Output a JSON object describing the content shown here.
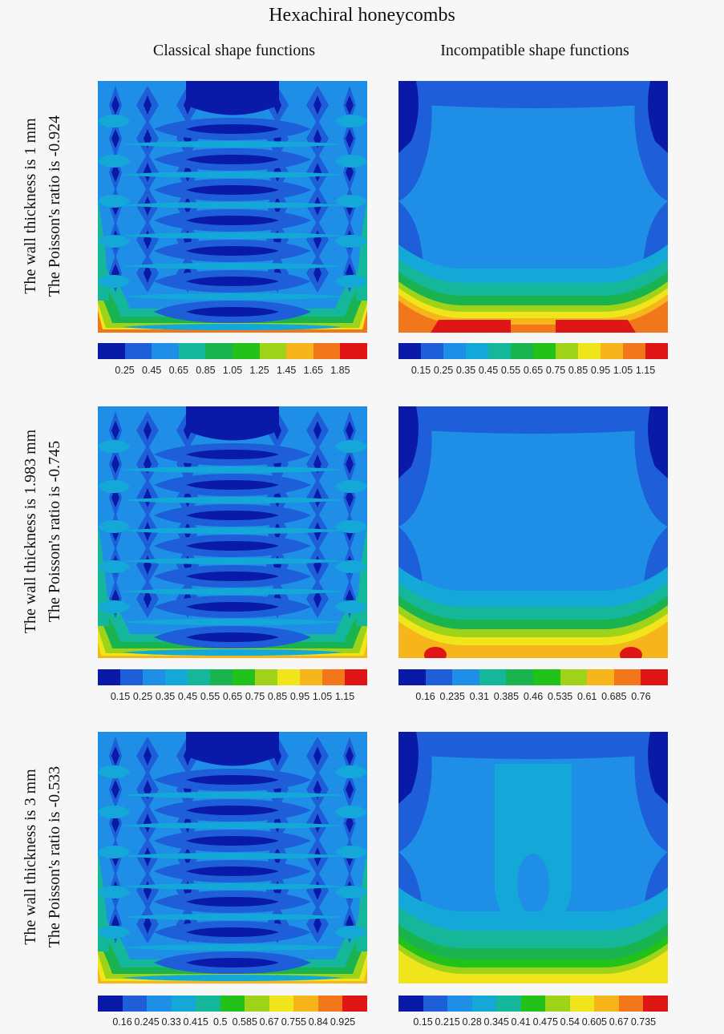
{
  "title": "Hexachiral honeycombs",
  "columns": [
    "Classical shape functions",
    "Incompatible shape functions"
  ],
  "rows": [
    {
      "line1": "The wall thickness is 1 mm",
      "line2": "The Poisson's ratio is -0.924"
    },
    {
      "line1": "The wall thickness is 1.983 mm",
      "line2": "The Poisson's ratio is -0.745"
    },
    {
      "line1": "The wall thickness is 3 mm",
      "line2": "The Poisson's ratio is -0.533"
    }
  ],
  "colors": [
    "#0a1aa8",
    "#1e5fd9",
    "#1e8ee6",
    "#14a8d8",
    "#15b79a",
    "#19b350",
    "#23c21a",
    "#9fd31a",
    "#f0e41a",
    "#f6b51a",
    "#f2771a",
    "#e01616"
  ],
  "chart_data": [
    {
      "type": "heatmap",
      "row": 0,
      "column": 0,
      "panel": "classical",
      "colorbar_ticks": [
        "0.25",
        "0.45",
        "0.65",
        "0.85",
        "1.05",
        "1.25",
        "1.45",
        "1.65",
        "1.85"
      ]
    },
    {
      "type": "heatmap",
      "row": 0,
      "column": 1,
      "panel": "incompatible",
      "colorbar_ticks": [
        "0.15",
        "0.25",
        "0.35",
        "0.45",
        "0.55",
        "0.65",
        "0.75",
        "0.85",
        "0.95",
        "1.05",
        "1.15"
      ]
    },
    {
      "type": "heatmap",
      "row": 1,
      "column": 0,
      "panel": "classical",
      "colorbar_ticks": [
        "0.15",
        "0.25",
        "0.35",
        "0.45",
        "0.55",
        "0.65",
        "0.75",
        "0.85",
        "0.95",
        "1.05",
        "1.15"
      ]
    },
    {
      "type": "heatmap",
      "row": 1,
      "column": 1,
      "panel": "incompatible",
      "colorbar_ticks": [
        "0.16",
        "0.235",
        "0.31",
        "0.385",
        "0.46",
        "0.535",
        "0.61",
        "0.685",
        "0.76"
      ]
    },
    {
      "type": "heatmap",
      "row": 2,
      "column": 0,
      "panel": "classical",
      "colorbar_ticks": [
        "0.16",
        "0.245",
        "0.33",
        "0.415",
        "0.5",
        "0.585",
        "0.67",
        "0.755",
        "0.84",
        "0.925"
      ]
    },
    {
      "type": "heatmap",
      "row": 2,
      "column": 1,
      "panel": "incompatible",
      "colorbar_ticks": [
        "0.15",
        "0.215",
        "0.28",
        "0.345",
        "0.41",
        "0.475",
        "0.54",
        "0.605",
        "0.67",
        "0.735"
      ]
    }
  ]
}
